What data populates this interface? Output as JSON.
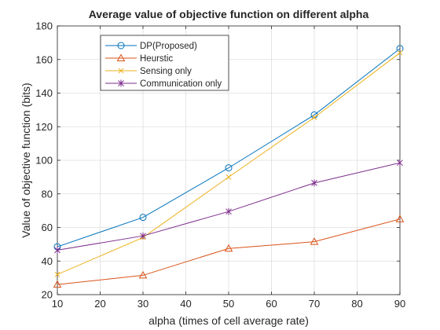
{
  "chart_data": {
    "type": "line",
    "title": "Average value of objective function on different alpha",
    "xlabel": "alpha (times of cell average rate)",
    "ylabel": "Value of objective function (bits)",
    "xlim": [
      10,
      90
    ],
    "ylim": [
      20,
      180
    ],
    "xticks": [
      10,
      20,
      30,
      40,
      50,
      60,
      70,
      80,
      90
    ],
    "yticks": [
      20,
      40,
      60,
      80,
      100,
      120,
      140,
      160,
      180
    ],
    "grid": true,
    "legend_position": "top-left",
    "x": [
      10,
      30,
      50,
      70,
      90
    ],
    "series": [
      {
        "name": "DP(Proposed)",
        "values": [
          48.5,
          66,
          95.5,
          127,
          166.5
        ],
        "color": "#0072bd",
        "marker": "circle"
      },
      {
        "name": "Heurstic",
        "values": [
          26,
          31.5,
          47.5,
          51.5,
          65
        ],
        "color": "#d95319",
        "marker": "triangle"
      },
      {
        "name": "Sensing only",
        "values": [
          32,
          54,
          90,
          125.5,
          164
        ],
        "color": "#edb120",
        "marker": "x"
      },
      {
        "name": "Communication only",
        "values": [
          46.5,
          55,
          69.5,
          86.5,
          98.5
        ],
        "color": "#7e2f8e",
        "marker": "asterisk"
      }
    ]
  }
}
